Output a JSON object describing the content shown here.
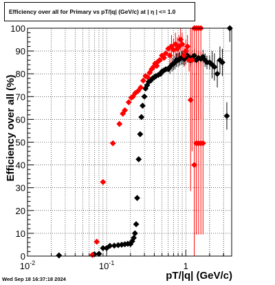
{
  "title": "Efficiency over all for Primary vs pT/|q| (GeV/c) at |   η | <= 1.0",
  "footer_timestamp": "Wed Sep 18 16:37:18 2024",
  "chart_data": {
    "type": "scatter",
    "title": "Efficiency over all for Primary vs pT/|q| (GeV/c) at |   η | <= 1.0",
    "xlabel": "pT/|q| (GeV/c)",
    "ylabel": "Efficiency over all (%)",
    "xscale": "log",
    "xlim": [
      0.01,
      3.8
    ],
    "ylim": [
      0,
      100
    ],
    "grid": true,
    "x_major_ticks": [
      0.01,
      0.1,
      1
    ],
    "x_tick_labels": [
      {
        "mantissa": "10",
        "exp": "-2"
      },
      {
        "mantissa": "10",
        "exp": "-1"
      },
      {
        "mantissa": "1",
        "exp": ""
      }
    ],
    "y_ticks": [
      0,
      10,
      20,
      30,
      40,
      50,
      60,
      70,
      80,
      90,
      100
    ],
    "series": [
      {
        "color": "#000000",
        "points": [
          {
            "x": 0.025,
            "y": 0.3
          },
          {
            "x": 0.07,
            "y": 0.8
          },
          {
            "x": 0.08,
            "y": 1
          },
          {
            "x": 0.09,
            "y": 3.5
          },
          {
            "x": 0.1,
            "y": 3.5
          },
          {
            "x": 0.11,
            "y": 4.5
          },
          {
            "x": 0.125,
            "y": 4.6
          },
          {
            "x": 0.14,
            "y": 4.8
          },
          {
            "x": 0.155,
            "y": 5.0
          },
          {
            "x": 0.17,
            "y": 5.2
          },
          {
            "x": 0.185,
            "y": 5.4
          },
          {
            "x": 0.2,
            "y": 5.3
          },
          {
            "x": 0.21,
            "y": 6.5
          },
          {
            "x": 0.22,
            "y": 8
          },
          {
            "x": 0.228,
            "y": 10
          },
          {
            "x": 0.236,
            "y": 14
          },
          {
            "x": 0.243,
            "y": 25.5
          },
          {
            "x": 0.254,
            "y": 42.5
          },
          {
            "x": 0.265,
            "y": 53.5
          },
          {
            "x": 0.275,
            "y": 61
          },
          {
            "x": 0.285,
            "y": 66
          },
          {
            "x": 0.3,
            "y": 70
          },
          {
            "x": 0.31,
            "y": 73.5
          },
          {
            "x": 0.325,
            "y": 75
          },
          {
            "x": 0.34,
            "y": 76.5
          },
          {
            "x": 0.36,
            "y": 77
          },
          {
            "x": 0.38,
            "y": 78
          },
          {
            "x": 0.4,
            "y": 78.5
          },
          {
            "x": 0.42,
            "y": 79
          },
          {
            "x": 0.45,
            "y": 79.5
          },
          {
            "x": 0.48,
            "y": 80
          },
          {
            "x": 0.5,
            "y": 81
          },
          {
            "x": 0.53,
            "y": 81.5
          },
          {
            "x": 0.56,
            "y": 82
          },
          {
            "x": 0.6,
            "y": 82
          },
          {
            "x": 0.63,
            "y": 83
          },
          {
            "x": 0.67,
            "y": 84
          },
          {
            "x": 0.7,
            "y": 84.5
          },
          {
            "x": 0.73,
            "y": 85
          },
          {
            "x": 0.76,
            "y": 86
          },
          {
            "x": 0.8,
            "y": 86
          },
          {
            "x": 0.84,
            "y": 86.5
          },
          {
            "x": 0.88,
            "y": 87
          },
          {
            "x": 0.92,
            "y": 87
          },
          {
            "x": 0.96,
            "y": 86.5
          },
          {
            "x": 1.0,
            "y": 87
          },
          {
            "x": 1.05,
            "y": 88
          },
          {
            "x": 1.1,
            "y": 87
          },
          {
            "x": 1.15,
            "y": 86
          },
          {
            "x": 1.2,
            "y": 87
          },
          {
            "x": 1.28,
            "y": 88
          },
          {
            "x": 1.36,
            "y": 86
          },
          {
            "x": 1.45,
            "y": 87
          },
          {
            "x": 1.55,
            "y": 86.5
          },
          {
            "x": 1.65,
            "y": 87.5
          },
          {
            "x": 1.75,
            "y": 86
          },
          {
            "x": 1.85,
            "y": 85
          },
          {
            "x": 2.0,
            "y": 85
          },
          {
            "x": 2.15,
            "y": 84
          },
          {
            "x": 2.3,
            "y": 83
          },
          {
            "x": 2.5,
            "y": 80
          },
          {
            "x": 2.7,
            "y": 86
          },
          {
            "x": 2.9,
            "y": 85
          },
          {
            "x": 3.3,
            "y": 61.5
          },
          {
            "x": 3.6,
            "y": 100
          }
        ]
      },
      {
        "color": "#ff0000",
        "points": [
          {
            "x": 0.066,
            "y": 0.5
          },
          {
            "x": 0.075,
            "y": 6.3
          },
          {
            "x": 0.09,
            "y": 32.5
          },
          {
            "x": 0.12,
            "y": 49.5
          },
          {
            "x": 0.145,
            "y": 58
          },
          {
            "x": 0.16,
            "y": 62.5
          },
          {
            "x": 0.17,
            "y": 64
          },
          {
            "x": 0.19,
            "y": 67.5
          },
          {
            "x": 0.205,
            "y": 69.5
          },
          {
            "x": 0.215,
            "y": 70
          },
          {
            "x": 0.23,
            "y": 71.5
          },
          {
            "x": 0.25,
            "y": 72.5
          },
          {
            "x": 0.27,
            "y": 74
          },
          {
            "x": 0.29,
            "y": 77
          },
          {
            "x": 0.31,
            "y": 79
          },
          {
            "x": 0.33,
            "y": 78.5
          },
          {
            "x": 0.35,
            "y": 80.5
          },
          {
            "x": 0.37,
            "y": 82
          },
          {
            "x": 0.39,
            "y": 83
          },
          {
            "x": 0.41,
            "y": 84.5
          },
          {
            "x": 0.43,
            "y": 83.5
          },
          {
            "x": 0.45,
            "y": 85.5
          },
          {
            "x": 0.47,
            "y": 86
          },
          {
            "x": 0.5,
            "y": 88
          },
          {
            "x": 0.53,
            "y": 87
          },
          {
            "x": 0.56,
            "y": 89
          },
          {
            "x": 0.6,
            "y": 91
          },
          {
            "x": 0.63,
            "y": 88
          },
          {
            "x": 0.66,
            "y": 92
          },
          {
            "x": 0.7,
            "y": 90.5
          },
          {
            "x": 0.74,
            "y": 93
          },
          {
            "x": 0.78,
            "y": 91
          },
          {
            "x": 0.82,
            "y": 92
          },
          {
            "x": 0.86,
            "y": 95
          },
          {
            "x": 0.9,
            "y": 93
          },
          {
            "x": 0.95,
            "y": 88
          },
          {
            "x": 1.0,
            "y": 90
          },
          {
            "x": 1.05,
            "y": 92
          },
          {
            "x": 1.1,
            "y": 86
          },
          {
            "x": 1.15,
            "y": 68.5
          },
          {
            "x": 1.2,
            "y": 86
          },
          {
            "x": 1.28,
            "y": 40
          },
          {
            "x": 1.36,
            "y": 49.5
          },
          {
            "x": 1.45,
            "y": 49.5
          },
          {
            "x": 1.55,
            "y": 49.5
          },
          {
            "x": 1.65,
            "y": 49.5
          },
          {
            "x": 1.28,
            "y": 100
          },
          {
            "x": 1.36,
            "y": 100
          },
          {
            "x": 1.45,
            "y": 100
          },
          {
            "x": 1.55,
            "y": 100
          }
        ]
      }
    ]
  }
}
